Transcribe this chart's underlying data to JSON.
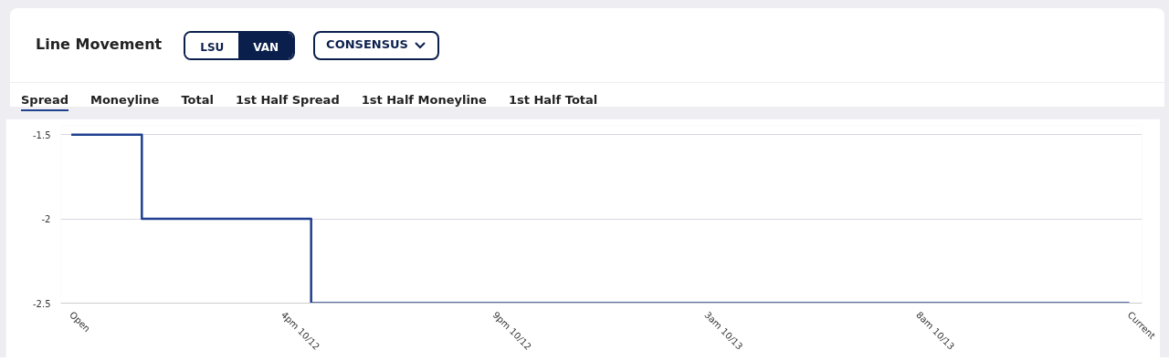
{
  "chart_data": {
    "type": "step",
    "title": "Line Movement",
    "annotations": [
      "LSU",
      "VAN",
      "CONSENSUS",
      "Spread",
      "Moneyline",
      "Total",
      "1st Half Spread",
      "1st Half Moneyline",
      "1st Half Total"
    ],
    "categories": [
      "Open",
      null,
      null,
      null,
      null,
      null,
      null,
      null,
      null,
      null,
      null,
      null,
      null,
      null,
      null,
      "4pm 10/12",
      null,
      null,
      null,
      null,
      null,
      null,
      null,
      null,
      null,
      null,
      null,
      null,
      null,
      null,
      "9pm 10/12",
      null,
      null,
      null,
      null,
      null,
      null,
      null,
      null,
      null,
      null,
      null,
      null,
      null,
      null,
      "3am 10/13",
      null,
      null,
      null,
      null,
      null,
      null,
      null,
      null,
      null,
      null,
      null,
      null,
      null,
      null,
      "8am 10/13",
      null,
      null,
      null,
      null,
      null,
      null,
      null,
      null,
      null,
      null,
      null,
      null,
      null,
      null,
      "Current"
    ],
    "series": [
      {
        "color": "#1f3f8f",
        "values": [
          -1.5,
          -1.5,
          -1.5,
          -1.5,
          -1.5,
          -2,
          -2,
          -2,
          -2,
          -2,
          -2,
          -2,
          -2,
          -2,
          -2,
          -2,
          -2,
          -2.5,
          -2.5,
          -2.5,
          -2.5,
          -2.5,
          -2.5,
          -2.5,
          -2.5,
          -2.5,
          -2.5,
          -2.5,
          -2.5,
          -2.5,
          -2.5,
          -2.5,
          -2.5,
          -2.5,
          -2.5,
          -2.5,
          -2.5,
          -2.5,
          -2.5,
          -2.5,
          -2.5,
          -2.5,
          -2.5,
          -2.5,
          -2.5,
          -2.5,
          -2.5,
          -2.5,
          -2.5,
          -2.5,
          -2.5,
          -2.5,
          -2.5,
          -2.5,
          -2.5,
          -2.5,
          -2.5,
          -2.5,
          -2.5,
          -2.5,
          -2.5,
          -2.5,
          -2.5,
          -2.5,
          -2.5,
          -2.5,
          -2.5,
          -2.5,
          -2.5,
          -2.5,
          -2.5,
          -2.5,
          -2.5,
          -2.5,
          -2.5,
          -2.5
        ]
      }
    ],
    "ylim": [
      -2.5,
      -1.45
    ],
    "yticks": [
      -2.5,
      -2,
      -1.5
    ],
    "grid": "y",
    "marker": "none",
    "line_style": "solid"
  }
}
